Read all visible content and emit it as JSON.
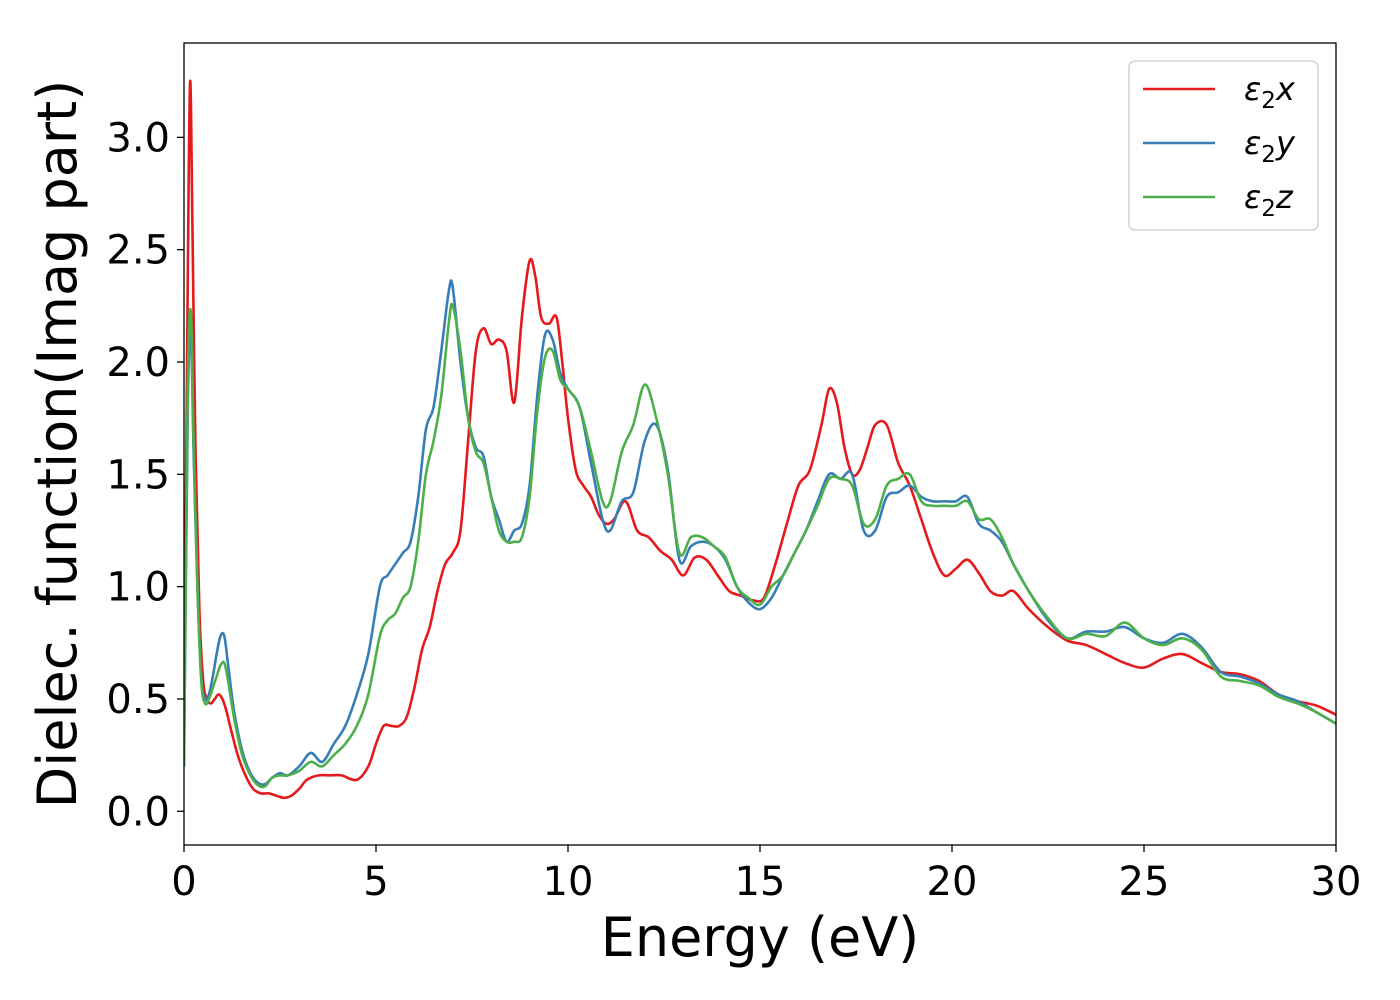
{
  "chart_data": {
    "type": "line",
    "title": "",
    "xlabel": "Energy (eV)",
    "ylabel": "Dielec. function(Imag part)",
    "xlim": [
      0,
      30
    ],
    "ylim": [
      -0.15,
      3.42
    ],
    "xticks": [
      0,
      5,
      10,
      15,
      20,
      25,
      30
    ],
    "yticks": [
      0.0,
      0.5,
      1.0,
      1.5,
      2.0,
      2.5,
      3.0
    ],
    "xtick_labels": [
      "0",
      "5",
      "10",
      "15",
      "20",
      "25",
      "30"
    ],
    "ytick_labels": [
      "0.0",
      "0.5",
      "1.0",
      "1.5",
      "2.0",
      "2.5",
      "3.0"
    ],
    "grid": false,
    "legend_position": "top-right",
    "series": [
      {
        "name": "ε₂x",
        "legend_base": "ε",
        "legend_sub": "2",
        "legend_var": "x",
        "color": "#e41a1c",
        "x": [
          0,
          0.1,
          0.16,
          0.22,
          0.3,
          0.4,
          0.5,
          0.6,
          0.7,
          0.8,
          0.9,
          1.0,
          1.1,
          1.2,
          1.4,
          1.6,
          1.8,
          2.0,
          2.2,
          2.4,
          2.6,
          2.8,
          3.0,
          3.2,
          3.5,
          3.8,
          4.1,
          4.5,
          4.8,
          5.0,
          5.2,
          5.4,
          5.6,
          5.8,
          6.0,
          6.2,
          6.4,
          6.6,
          6.8,
          7.0,
          7.2,
          7.4,
          7.6,
          7.8,
          8.0,
          8.2,
          8.4,
          8.6,
          8.8,
          9.0,
          9.15,
          9.3,
          9.5,
          9.7,
          9.85,
          10.0,
          10.2,
          10.4,
          10.6,
          10.8,
          11.0,
          11.2,
          11.5,
          11.8,
          12.1,
          12.4,
          12.7,
          13.0,
          13.3,
          13.6,
          13.9,
          14.2,
          14.5,
          14.8,
          15.1,
          15.4,
          15.7,
          16.0,
          16.3,
          16.6,
          16.8,
          17.0,
          17.2,
          17.4,
          17.6,
          17.8,
          18.0,
          18.3,
          18.6,
          18.9,
          19.2,
          19.5,
          19.8,
          20.1,
          20.4,
          20.7,
          21.0,
          21.3,
          21.6,
          22.0,
          22.5,
          23.0,
          23.5,
          24.0,
          24.5,
          25.0,
          25.5,
          26.0,
          26.5,
          27.0,
          27.5,
          28.0,
          28.5,
          29.0,
          29.5,
          30.0
        ],
        "y": [
          0.3,
          2.4,
          3.25,
          2.6,
          1.6,
          0.9,
          0.58,
          0.5,
          0.48,
          0.5,
          0.52,
          0.5,
          0.45,
          0.38,
          0.25,
          0.16,
          0.1,
          0.08,
          0.08,
          0.07,
          0.06,
          0.07,
          0.1,
          0.14,
          0.16,
          0.16,
          0.16,
          0.14,
          0.2,
          0.3,
          0.38,
          0.38,
          0.38,
          0.42,
          0.55,
          0.72,
          0.82,
          0.98,
          1.1,
          1.15,
          1.25,
          1.65,
          2.05,
          2.15,
          2.08,
          2.1,
          2.05,
          1.82,
          2.2,
          2.45,
          2.38,
          2.2,
          2.17,
          2.2,
          2.0,
          1.75,
          1.52,
          1.45,
          1.4,
          1.32,
          1.28,
          1.3,
          1.38,
          1.25,
          1.22,
          1.16,
          1.12,
          1.05,
          1.13,
          1.12,
          1.05,
          0.98,
          0.96,
          0.94,
          0.95,
          1.1,
          1.28,
          1.45,
          1.52,
          1.72,
          1.88,
          1.82,
          1.62,
          1.5,
          1.52,
          1.62,
          1.72,
          1.72,
          1.55,
          1.45,
          1.3,
          1.15,
          1.05,
          1.08,
          1.12,
          1.06,
          0.98,
          0.96,
          0.98,
          0.9,
          0.82,
          0.76,
          0.74,
          0.7,
          0.66,
          0.64,
          0.68,
          0.7,
          0.66,
          0.62,
          0.61,
          0.58,
          0.52,
          0.49,
          0.47,
          0.43
        ]
      },
      {
        "name": "ε₂y",
        "legend_base": "ε",
        "legend_sub": "2",
        "legend_var": "y",
        "color": "#377eb8",
        "x": [
          0,
          0.1,
          0.18,
          0.25,
          0.35,
          0.45,
          0.55,
          0.65,
          0.75,
          0.85,
          0.95,
          1.05,
          1.15,
          1.3,
          1.5,
          1.7,
          1.9,
          2.1,
          2.3,
          2.5,
          2.7,
          3.0,
          3.3,
          3.6,
          3.9,
          4.2,
          4.5,
          4.8,
          5.1,
          5.3,
          5.5,
          5.7,
          5.9,
          6.1,
          6.3,
          6.5,
          6.7,
          6.9,
          7.0,
          7.2,
          7.4,
          7.6,
          7.8,
          8.0,
          8.2,
          8.4,
          8.6,
          8.8,
          9.0,
          9.2,
          9.4,
          9.6,
          9.8,
          10.0,
          10.3,
          10.6,
          10.9,
          11.1,
          11.4,
          11.7,
          12.0,
          12.3,
          12.6,
          12.9,
          13.2,
          13.5,
          13.8,
          14.1,
          14.4,
          14.7,
          15.0,
          15.3,
          15.6,
          15.9,
          16.2,
          16.5,
          16.8,
          17.1,
          17.4,
          17.7,
          18.0,
          18.3,
          18.6,
          18.9,
          19.2,
          19.5,
          19.8,
          20.1,
          20.4,
          20.7,
          21.0,
          21.3,
          21.6,
          22.0,
          22.5,
          23.0,
          23.5,
          24.0,
          24.5,
          25.0,
          25.5,
          26.0,
          26.5,
          27.0,
          27.5,
          28.0,
          28.5,
          29.0,
          29.5,
          30.0
        ],
        "y": [
          0.2,
          1.8,
          2.12,
          1.6,
          1.0,
          0.6,
          0.5,
          0.52,
          0.6,
          0.7,
          0.78,
          0.78,
          0.65,
          0.45,
          0.28,
          0.18,
          0.13,
          0.12,
          0.15,
          0.17,
          0.16,
          0.2,
          0.26,
          0.22,
          0.3,
          0.38,
          0.52,
          0.7,
          1.0,
          1.05,
          1.1,
          1.15,
          1.2,
          1.4,
          1.7,
          1.8,
          2.05,
          2.32,
          2.33,
          2.0,
          1.75,
          1.62,
          1.58,
          1.4,
          1.3,
          1.2,
          1.25,
          1.28,
          1.45,
          1.85,
          2.12,
          2.1,
          1.95,
          1.88,
          1.8,
          1.55,
          1.3,
          1.25,
          1.38,
          1.42,
          1.65,
          1.72,
          1.52,
          1.12,
          1.18,
          1.2,
          1.18,
          1.12,
          1.0,
          0.93,
          0.9,
          0.95,
          1.05,
          1.15,
          1.25,
          1.38,
          1.5,
          1.48,
          1.5,
          1.25,
          1.25,
          1.4,
          1.42,
          1.45,
          1.4,
          1.38,
          1.38,
          1.38,
          1.4,
          1.28,
          1.25,
          1.2,
          1.1,
          0.98,
          0.85,
          0.77,
          0.8,
          0.8,
          0.82,
          0.77,
          0.75,
          0.79,
          0.73,
          0.62,
          0.6,
          0.57,
          0.52,
          0.49,
          0.44,
          0.39
        ]
      },
      {
        "name": "ε₂z",
        "legend_base": "ε",
        "legend_sub": "2",
        "legend_var": "z",
        "color": "#4daf4a",
        "x": [
          0,
          0.1,
          0.18,
          0.25,
          0.35,
          0.45,
          0.55,
          0.65,
          0.75,
          0.85,
          0.95,
          1.05,
          1.15,
          1.3,
          1.5,
          1.7,
          1.9,
          2.1,
          2.3,
          2.5,
          2.7,
          3.0,
          3.3,
          3.6,
          3.9,
          4.2,
          4.5,
          4.8,
          5.1,
          5.3,
          5.5,
          5.7,
          5.9,
          6.1,
          6.3,
          6.5,
          6.7,
          6.9,
          7.0,
          7.2,
          7.4,
          7.6,
          7.8,
          8.0,
          8.2,
          8.4,
          8.6,
          8.8,
          9.0,
          9.2,
          9.4,
          9.6,
          9.8,
          10.0,
          10.3,
          10.6,
          10.9,
          11.1,
          11.4,
          11.7,
          12.0,
          12.3,
          12.6,
          12.9,
          13.2,
          13.5,
          13.8,
          14.1,
          14.4,
          14.7,
          15.0,
          15.3,
          15.6,
          15.9,
          16.2,
          16.5,
          16.8,
          17.1,
          17.4,
          17.7,
          18.0,
          18.3,
          18.6,
          18.9,
          19.2,
          19.5,
          19.8,
          20.1,
          20.4,
          20.7,
          21.0,
          21.3,
          21.6,
          22.0,
          22.5,
          23.0,
          23.5,
          24.0,
          24.5,
          25.0,
          25.5,
          26.0,
          26.5,
          27.0,
          27.5,
          28.0,
          28.5,
          29.0,
          29.5,
          30.0
        ],
        "y": [
          0.2,
          1.9,
          2.22,
          1.65,
          1.0,
          0.58,
          0.48,
          0.5,
          0.55,
          0.6,
          0.65,
          0.66,
          0.58,
          0.42,
          0.26,
          0.17,
          0.12,
          0.11,
          0.15,
          0.16,
          0.16,
          0.18,
          0.22,
          0.2,
          0.25,
          0.3,
          0.38,
          0.52,
          0.78,
          0.85,
          0.88,
          0.95,
          1.0,
          1.2,
          1.5,
          1.65,
          1.85,
          2.18,
          2.25,
          2.05,
          1.75,
          1.6,
          1.55,
          1.4,
          1.25,
          1.2,
          1.2,
          1.22,
          1.4,
          1.78,
          2.02,
          2.05,
          1.92,
          1.88,
          1.8,
          1.6,
          1.38,
          1.38,
          1.6,
          1.72,
          1.9,
          1.75,
          1.5,
          1.15,
          1.22,
          1.22,
          1.18,
          1.13,
          1.0,
          0.95,
          0.92,
          1.0,
          1.05,
          1.15,
          1.25,
          1.36,
          1.48,
          1.48,
          1.45,
          1.28,
          1.3,
          1.45,
          1.48,
          1.5,
          1.38,
          1.36,
          1.36,
          1.36,
          1.38,
          1.3,
          1.3,
          1.22,
          1.1,
          0.98,
          0.86,
          0.77,
          0.79,
          0.78,
          0.84,
          0.77,
          0.74,
          0.77,
          0.72,
          0.6,
          0.58,
          0.56,
          0.51,
          0.48,
          0.44,
          0.39
        ]
      }
    ]
  }
}
